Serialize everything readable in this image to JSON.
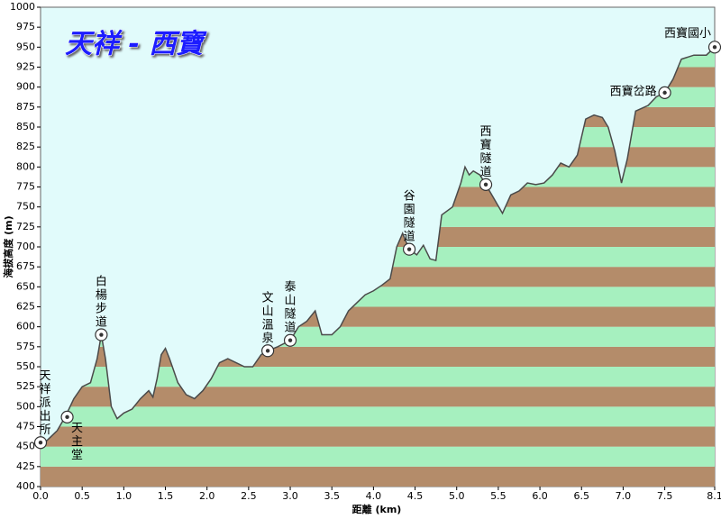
{
  "chart_data": {
    "type": "area",
    "title": "天祥 - 西寶",
    "x_label": "距離 (km)",
    "y_label": "海拔高度 (m)",
    "x": [
      0.0,
      0.1,
      0.2,
      0.3,
      0.4,
      0.5,
      0.6,
      0.68,
      0.73,
      0.78,
      0.85,
      0.92,
      1.0,
      1.1,
      1.2,
      1.3,
      1.35,
      1.4,
      1.45,
      1.5,
      1.55,
      1.65,
      1.75,
      1.85,
      1.95,
      2.05,
      2.15,
      2.25,
      2.35,
      2.45,
      2.55,
      2.65,
      2.73,
      2.85,
      3.0,
      3.1,
      3.2,
      3.3,
      3.38,
      3.5,
      3.6,
      3.7,
      3.8,
      3.9,
      4.0,
      4.1,
      4.2,
      4.28,
      4.35,
      4.43,
      4.52,
      4.6,
      4.68,
      4.75,
      4.82,
      4.95,
      5.05,
      5.1,
      5.15,
      5.2,
      5.28,
      5.35,
      5.45,
      5.55,
      5.65,
      5.75,
      5.85,
      5.95,
      6.05,
      6.15,
      6.25,
      6.35,
      6.45,
      6.55,
      6.65,
      6.75,
      6.82,
      6.9,
      6.98,
      7.05,
      7.15,
      7.3,
      7.4,
      7.5,
      7.6,
      7.7,
      7.85,
      8.0,
      8.1
    ],
    "values": [
      450,
      460,
      470,
      488,
      510,
      525,
      530,
      560,
      590,
      560,
      500,
      485,
      492,
      497,
      510,
      520,
      512,
      535,
      565,
      573,
      560,
      530,
      515,
      510,
      520,
      535,
      555,
      560,
      555,
      550,
      550,
      565,
      570,
      575,
      583,
      600,
      607,
      620,
      590,
      590,
      600,
      620,
      630,
      640,
      645,
      652,
      660,
      700,
      717,
      697,
      690,
      702,
      685,
      683,
      740,
      750,
      780,
      800,
      790,
      795,
      790,
      778,
      760,
      742,
      765,
      770,
      780,
      778,
      780,
      790,
      805,
      800,
      815,
      860,
      865,
      862,
      850,
      820,
      780,
      810,
      870,
      877,
      888,
      893,
      910,
      935,
      940,
      940,
      950
    ],
    "xlim": [
      0,
      8.1
    ],
    "xticks": [
      {
        "value": 0,
        "label": "0.0"
      },
      0.5,
      {
        "value": 1,
        "label": "1.0"
      },
      1.5,
      {
        "value": 2,
        "label": "2.0"
      },
      2.5,
      {
        "value": 3,
        "label": "3.0"
      },
      3.5,
      {
        "value": 4,
        "label": "4.0"
      },
      4.5,
      {
        "value": 5,
        "label": "5.0"
      },
      5.5,
      {
        "value": 6,
        "label": "6.0"
      },
      6.5,
      {
        "value": 7,
        "label": "7.0"
      },
      7.5,
      8.1
    ],
    "ylim": [
      400,
      1000
    ],
    "yticks": [
      400,
      425,
      450,
      475,
      500,
      525,
      550,
      575,
      600,
      625,
      650,
      675,
      700,
      725,
      750,
      775,
      800,
      825,
      850,
      875,
      900,
      925,
      950,
      975,
      1000
    ],
    "band_colors": [
      "#b48c6a",
      "#a6f0bf"
    ],
    "line_color": "#4a4a4a",
    "background": "#e1fbfb",
    "label_color": "#3333dd",
    "annotations": [
      {
        "text": "天祥派出所",
        "x": 0.0,
        "y": 455
      },
      {
        "text": "天主堂",
        "x": 0.32,
        "y": 487
      },
      {
        "text": "白楊步道",
        "x": 0.73,
        "y": 590
      },
      {
        "text": "文山溫泉",
        "x": 2.73,
        "y": 570
      },
      {
        "text": "泰山隧道",
        "x": 3.0,
        "y": 583
      },
      {
        "text": "谷園隧道",
        "x": 4.43,
        "y": 697
      },
      {
        "text": "西寶隧道",
        "x": 5.35,
        "y": 778
      },
      {
        "text": "西寶岔路",
        "x": 7.5,
        "y": 893
      },
      {
        "text": "西寶國小",
        "x": 8.1,
        "y": 950
      }
    ]
  }
}
